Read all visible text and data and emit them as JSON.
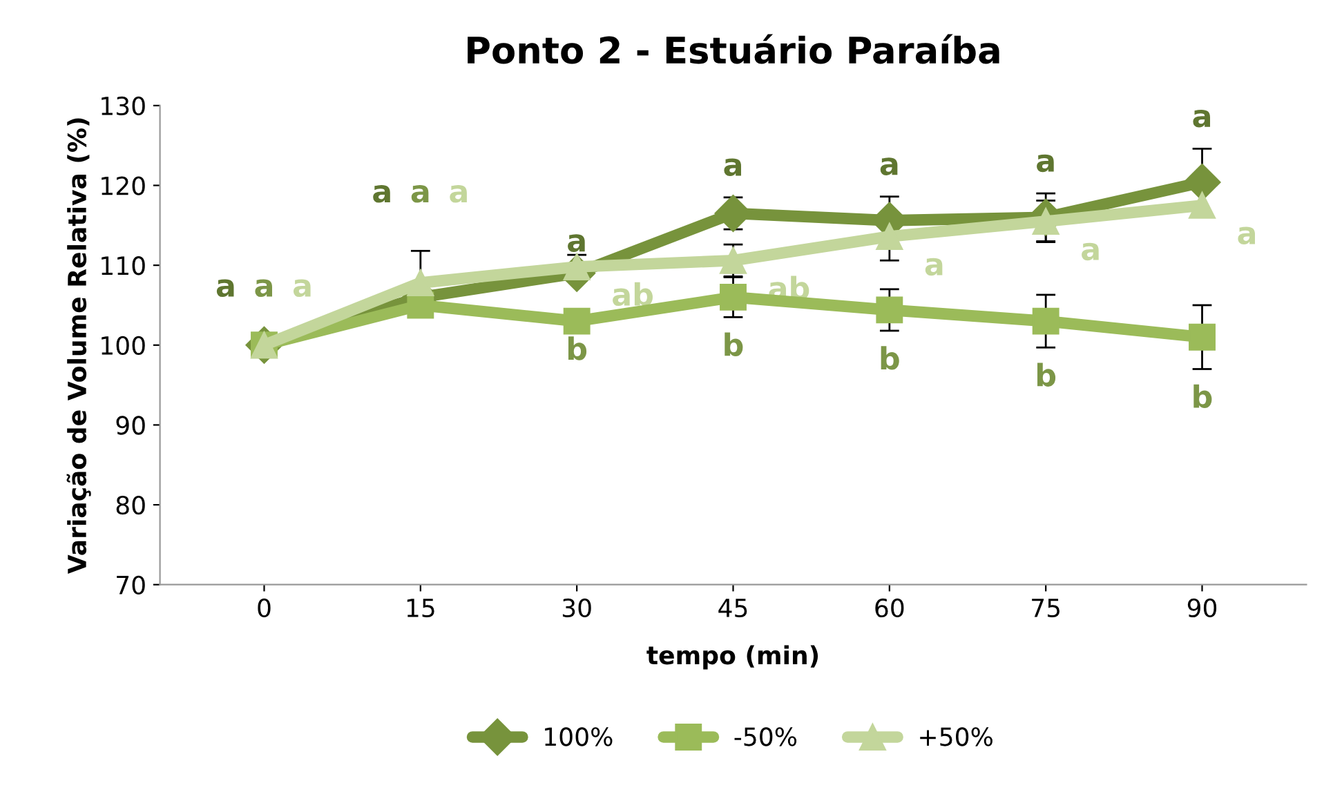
{
  "chart_data": {
    "type": "line",
    "title": "Ponto 2 - Estuário Paraíba",
    "xlabel": "tempo (min)",
    "ylabel": "Variação de Volume Relativa (%)",
    "x": [
      0,
      15,
      30,
      45,
      60,
      75,
      90
    ],
    "xlim": [
      -10,
      100
    ],
    "xticks": [
      0,
      15,
      30,
      45,
      60,
      75,
      90
    ],
    "ylim": [
      70,
      130
    ],
    "yticks": [
      70,
      80,
      90,
      100,
      110,
      120,
      130
    ],
    "grid": false,
    "legend": "bottom",
    "series": [
      {
        "name": "100%",
        "color": "#77933c",
        "marker": "diamond",
        "values": [
          100,
          106,
          109,
          116.5,
          115.6,
          116,
          120.4
        ],
        "errors": [
          null,
          null,
          null,
          2,
          3,
          3,
          4.2
        ],
        "value_labels": [
          "a",
          "a",
          "a",
          "a",
          "a",
          "a",
          "a"
        ]
      },
      {
        "name": "-50%",
        "color": "#9bbb59",
        "marker": "square",
        "values": [
          100,
          105,
          103,
          106,
          104.4,
          103,
          101
        ],
        "errors": [
          null,
          null,
          null,
          2.5,
          2.6,
          3.3,
          4
        ],
        "value_labels": [
          "a",
          "a",
          "b",
          "b",
          "b",
          "b",
          "b"
        ]
      },
      {
        "name": "+50%",
        "color": "#c3d69b",
        "marker": "triangle",
        "values": [
          100,
          107.8,
          109.8,
          110.6,
          113.6,
          115.5,
          117.5
        ],
        "errors": [
          null,
          4,
          1.5,
          2,
          3,
          2.6,
          null
        ],
        "value_labels": [
          "a",
          "a",
          "ab",
          "ab",
          "a",
          "a",
          "a"
        ]
      }
    ]
  }
}
